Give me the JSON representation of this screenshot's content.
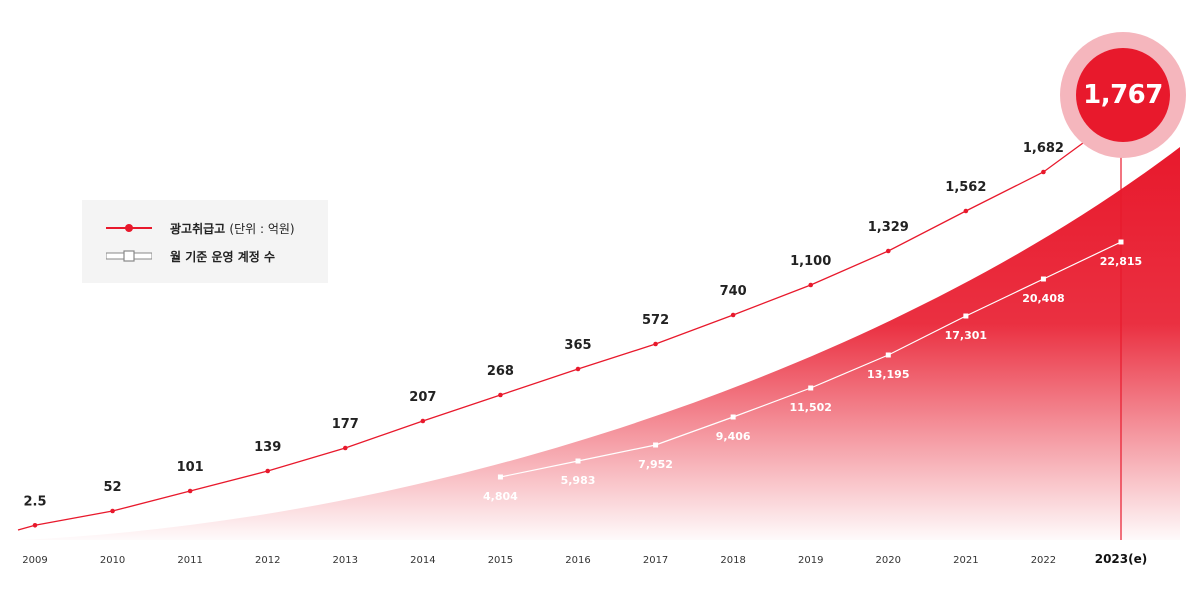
{
  "chart_data": {
    "type": "line",
    "categories": [
      "2009",
      "2010",
      "2011",
      "2012",
      "2013",
      "2014",
      "2015",
      "2016",
      "2017",
      "2018",
      "2019",
      "2020",
      "2021",
      "2022",
      "2023(e)"
    ],
    "series": [
      {
        "name": "광고취급고 (단위 : 억원)",
        "color": "#e8192c",
        "values": [
          2.5,
          52,
          101,
          139,
          177,
          207,
          268,
          365,
          572,
          740,
          1100,
          1329,
          1562,
          1682,
          1767
        ],
        "labels": [
          "2.5",
          "52",
          "101",
          "139",
          "177",
          "207",
          "268",
          "365",
          "572",
          "740",
          "1,100",
          "1,329",
          "1,562",
          "1,682",
          "1,767"
        ]
      },
      {
        "name": "월 기준 운영 계정 수",
        "color": "#ffffff",
        "values": [
          null,
          null,
          null,
          null,
          null,
          null,
          4804,
          5983,
          7952,
          9406,
          11502,
          13195,
          17301,
          20408,
          22815
        ],
        "labels": [
          "",
          "",
          "",
          "",
          "",
          "",
          "4,804",
          "5,983",
          "7,952",
          "9,406",
          "11,502",
          "13,195",
          "17,301",
          "20,408",
          "22,815"
        ]
      }
    ],
    "highlight": {
      "category": "2023(e)",
      "value": "1,767"
    },
    "area_color": "#e8192c",
    "legend": {
      "position": "left",
      "item1_main": "광고취급고",
      "item1_unit": "(단위 : 억원)",
      "item2": "월 기준 운영 계정 수"
    }
  }
}
